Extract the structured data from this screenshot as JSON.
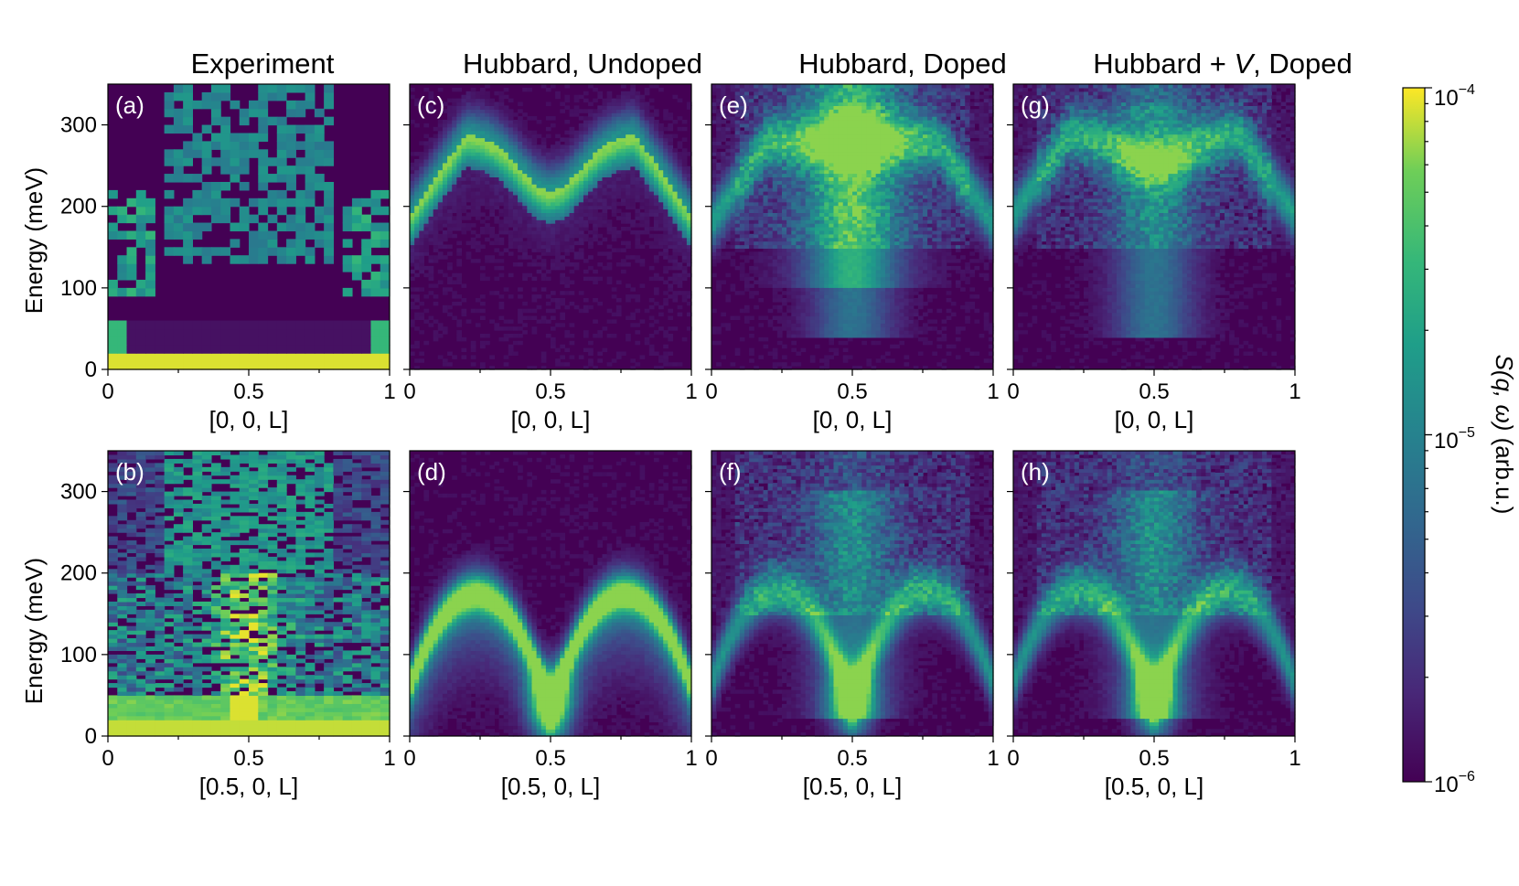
{
  "figure": {
    "column_titles": [
      "Experiment",
      "Hubbard, Undoped",
      "Hubbard, Doped",
      "Hubbard + "
    ],
    "column_title_v": "V",
    "column_title_v_suffix": ", Doped",
    "ylabel": "Energy (meV)",
    "colorbar_label_S": "S",
    "colorbar_label_args": "(q, ω)",
    "colorbar_label_unit": " (arb.u.)"
  },
  "colors": {
    "background_dark": "#440154",
    "colormap": "viridis",
    "panel_label": "#ffffff"
  },
  "chart_data": {
    "type": "heatmap",
    "xlim": [
      0,
      1
    ],
    "ylim": [
      0,
      350
    ],
    "x_ticks": [
      "0",
      "0.5",
      "1"
    ],
    "y_ticks": [
      "0",
      "100",
      "200",
      "300"
    ],
    "xlabels": {
      "top": "[0, 0, L]",
      "bottom": "[0.5, 0, L]"
    },
    "colorbar": {
      "scale": "log",
      "range": [
        1e-06,
        0.0001
      ],
      "tick_labels": [
        {
          "base": "10",
          "exp": "−4"
        },
        {
          "base": "10",
          "exp": "−5"
        },
        {
          "base": "10",
          "exp": "−6"
        }
      ]
    },
    "panels": [
      {
        "label": "(a)",
        "row": "top",
        "column": "Experiment",
        "model": "exp"
      },
      {
        "label": "(b)",
        "row": "bottom",
        "column": "Experiment",
        "model": "exp"
      },
      {
        "label": "(c)",
        "row": "top",
        "column": "Hubbard, Undoped",
        "model": "undoped"
      },
      {
        "label": "(d)",
        "row": "bottom",
        "column": "Hubbard, Undoped",
        "model": "undoped"
      },
      {
        "label": "(e)",
        "row": "top",
        "column": "Hubbard, Doped",
        "model": "doped"
      },
      {
        "label": "(f)",
        "row": "bottom",
        "column": "Hubbard, Doped",
        "model": "doped"
      },
      {
        "label": "(g)",
        "row": "top",
        "column": "Hubbard + V, Doped",
        "model": "dopedV"
      },
      {
        "label": "(h)",
        "row": "bottom",
        "column": "Hubbard + V, Doped",
        "model": "dopedV"
      }
    ]
  }
}
